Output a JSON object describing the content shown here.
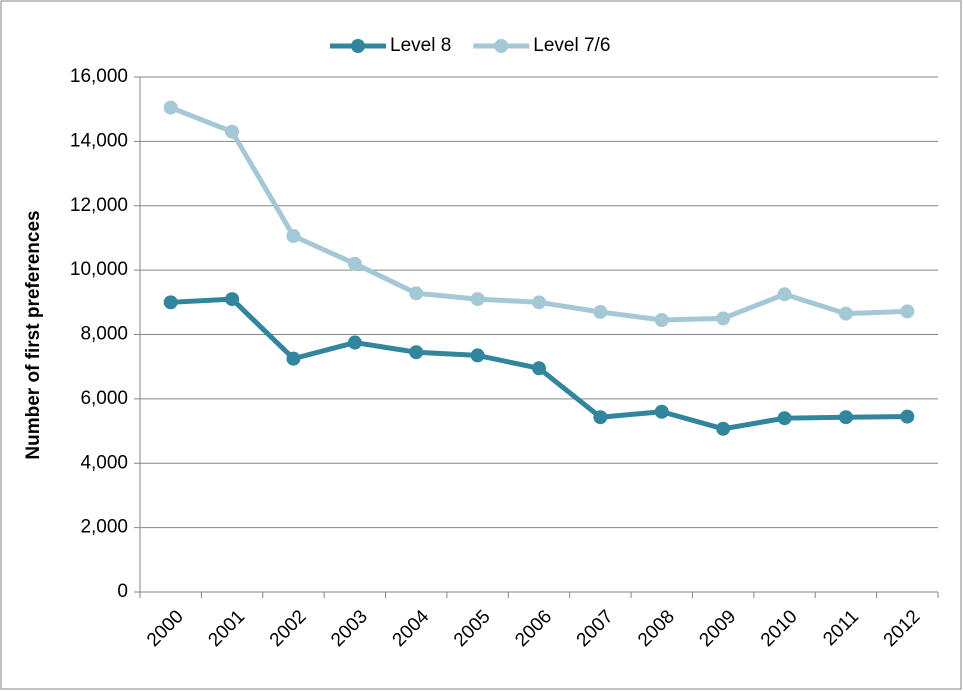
{
  "chart_data": {
    "type": "line",
    "y_label": "Number of first preferences",
    "categories": [
      "2000",
      "2001",
      "2002",
      "2003",
      "2004",
      "2005",
      "2006",
      "2007",
      "2008",
      "2009",
      "2010",
      "2011",
      "2012"
    ],
    "series": [
      {
        "name": "Level 8",
        "color": "#31859c",
        "values": [
          9000,
          9100,
          7250,
          7750,
          7450,
          7350,
          6950,
          5430,
          5600,
          5070,
          5400,
          5430,
          5450
        ]
      },
      {
        "name": "Level 7/6",
        "color": "#a5c8d6",
        "values": [
          15050,
          14300,
          11060,
          10200,
          9280,
          9100,
          9000,
          8700,
          8450,
          8500,
          9250,
          8650,
          8720
        ]
      }
    ],
    "ylim": [
      0,
      16000
    ],
    "yticks": [
      0,
      {
        "value": 2000,
        "label": "2,000"
      },
      {
        "value": 4000,
        "label": "4,000"
      },
      {
        "value": 6000,
        "label": "6,000"
      },
      {
        "value": 8000,
        "label": "8,000"
      },
      {
        "value": 10000,
        "label": "10,000"
      },
      {
        "value": 12000,
        "label": "12,000"
      },
      {
        "value": 14000,
        "label": "14,000"
      },
      {
        "value": 16000,
        "label": "16,000"
      }
    ],
    "grid": true,
    "legend": "top"
  }
}
